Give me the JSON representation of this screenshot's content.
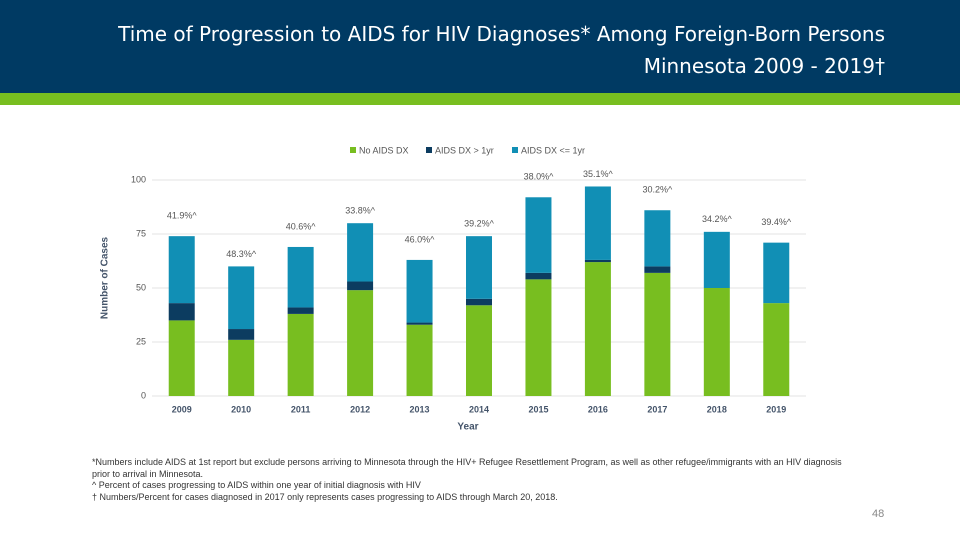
{
  "header": {
    "title_line1": "Time of Progression to AIDS for HIV Diagnoses* Among Foreign-Born Persons",
    "title_line2": "Minnesota 2009 - 2019†"
  },
  "chart_data": {
    "type": "stacked_bar",
    "categories": [
      "2009",
      "2010",
      "2011",
      "2012",
      "2013",
      "2014",
      "2015",
      "2016",
      "2017",
      "2018",
      "2019"
    ],
    "series": [
      {
        "name": "No AIDS DX",
        "color": "#78be20",
        "values": [
          35,
          26,
          38,
          49,
          33,
          42,
          54,
          62,
          57,
          50,
          43
        ]
      },
      {
        "name": "AIDS DX > 1yr",
        "color": "#0c3c60",
        "values": [
          8,
          5,
          3,
          4,
          1,
          3,
          3,
          1,
          3,
          0,
          0
        ]
      },
      {
        "name": "AIDS DX <= 1yr",
        "color": "#118fb5",
        "values": [
          31,
          29,
          28,
          27,
          29,
          29,
          35,
          34,
          26,
          26,
          28
        ]
      }
    ],
    "bar_annotations": [
      "41.9%^",
      "48.3%^",
      "40.6%^",
      "33.8%^",
      "46.0%^",
      "39.2%^",
      "38.0%^",
      "35.1%^",
      "30.2%^",
      "34.2%^",
      "39.4%^"
    ],
    "ylim": [
      0,
      100
    ],
    "yticks": [
      0,
      25,
      50,
      75,
      100
    ],
    "grid": true,
    "xlabel": "Year",
    "ylabel": "Number of Cases",
    "legend": "top"
  },
  "footnotes": [
    "*Numbers include AIDS at 1st report but exclude persons arriving to Minnesota through the HIV+ Refugee Resettlement Program, as well as other refugee/immigrants with an HIV diagnosis prior to arrival in Minnesota.",
    "^ Percent of cases progressing to AIDS within one year of initial diagnosis with HIV",
    "† Numbers/Percent for cases diagnosed in 2017 only represents cases progressing to AIDS through March 20, 2018."
  ],
  "page_number": "48"
}
